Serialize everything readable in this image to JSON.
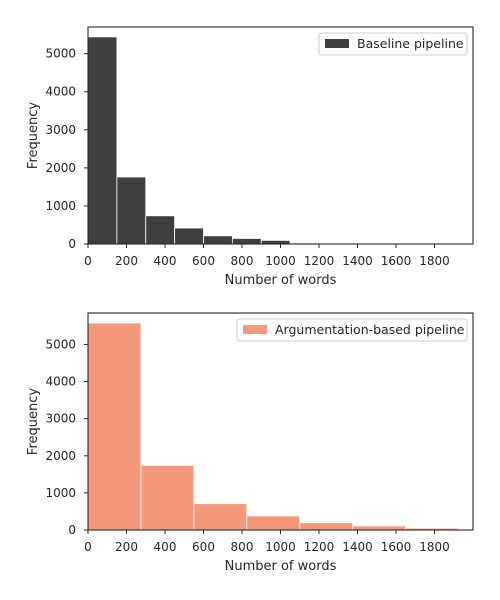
{
  "chart_data": [
    {
      "type": "bar",
      "subtype": "histogram",
      "title": "",
      "xlabel": "Number of words",
      "ylabel": "Frequency",
      "xlim": [
        0,
        2000
      ],
      "ylim": [
        0,
        5700
      ],
      "xticks": [
        0,
        200,
        400,
        600,
        800,
        1000,
        1200,
        1400,
        1600,
        1800
      ],
      "yticks": [
        0,
        1000,
        2000,
        3000,
        4000,
        5000
      ],
      "grid": false,
      "legend_position": "top-right",
      "series": [
        {
          "name": "Baseline pipeline",
          "color": "#3f3f3f",
          "bins": [
            {
              "start": 0,
              "end": 150,
              "value": 5440
            },
            {
              "start": 150,
              "end": 300,
              "value": 1760
            },
            {
              "start": 300,
              "end": 450,
              "value": 740
            },
            {
              "start": 450,
              "end": 600,
              "value": 420
            },
            {
              "start": 600,
              "end": 750,
              "value": 215
            },
            {
              "start": 750,
              "end": 900,
              "value": 145
            },
            {
              "start": 900,
              "end": 1050,
              "value": 95
            },
            {
              "start": 1050,
              "end": 1200,
              "value": 25
            },
            {
              "start": 1200,
              "end": 1350,
              "value": 12
            },
            {
              "start": 1350,
              "end": 1500,
              "value": 8
            },
            {
              "start": 1500,
              "end": 1650,
              "value": 5
            },
            {
              "start": 1650,
              "end": 1800,
              "value": 4
            },
            {
              "start": 1800,
              "end": 1950,
              "value": 3
            }
          ]
        }
      ]
    },
    {
      "type": "bar",
      "subtype": "histogram",
      "title": "",
      "xlabel": "Number of words",
      "ylabel": "Frequency",
      "xlim": [
        0,
        2000
      ],
      "ylim": [
        0,
        5850
      ],
      "xticks": [
        0,
        200,
        400,
        600,
        800,
        1000,
        1200,
        1400,
        1600,
        1800
      ],
      "yticks": [
        0,
        1000,
        2000,
        3000,
        4000,
        5000
      ],
      "grid": false,
      "legend_position": "top-right",
      "series": [
        {
          "name": "Argumentation-based pipeline",
          "color": "#f4987c",
          "bins": [
            {
              "start": 0,
              "end": 275,
              "value": 5580
            },
            {
              "start": 275,
              "end": 550,
              "value": 1740
            },
            {
              "start": 550,
              "end": 825,
              "value": 710
            },
            {
              "start": 825,
              "end": 1100,
              "value": 380
            },
            {
              "start": 1100,
              "end": 1375,
              "value": 195
            },
            {
              "start": 1375,
              "end": 1650,
              "value": 110
            },
            {
              "start": 1650,
              "end": 1925,
              "value": 50
            }
          ]
        }
      ]
    }
  ]
}
